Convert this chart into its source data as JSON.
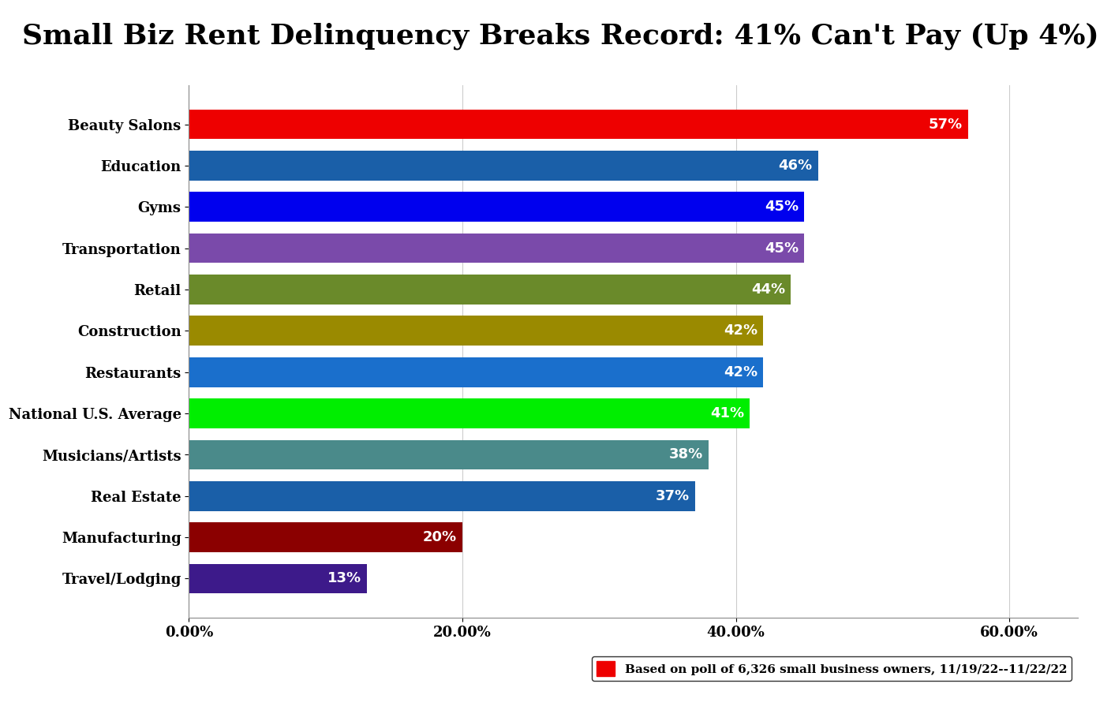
{
  "title": "Small Biz Rent Delinquency Breaks Record: 41% Can't Pay (Up 4%)",
  "categories": [
    "Travel/Lodging",
    "Manufacturing",
    "Real Estate",
    "Musicians/Artists",
    "National U.S. Average",
    "Restaurants",
    "Construction",
    "Retail",
    "Transportation",
    "Gyms",
    "Education",
    "Beauty Salons"
  ],
  "values": [
    13,
    20,
    37,
    38,
    41,
    42,
    42,
    44,
    45,
    45,
    46,
    57
  ],
  "bar_colors": [
    "#3d1a8a",
    "#8b0000",
    "#1a5fa8",
    "#4a8a8a",
    "#00ee00",
    "#1a6fcc",
    "#9a8a00",
    "#6a8a2a",
    "#7a4aaa",
    "#0000ee",
    "#1a5fa8",
    "#ee0000"
  ],
  "xlabel_ticks": [
    "0.00%",
    "20.00%",
    "40.00%",
    "60.00%"
  ],
  "xlabel_vals": [
    0,
    20,
    40,
    60
  ],
  "xlim": [
    0,
    65
  ],
  "legend_text": "Based on poll of 6,326 small business owners, 11/19/22--11/22/22",
  "legend_color": "#ee0000",
  "background_color": "#ffffff",
  "title_fontsize": 26,
  "label_fontsize": 13,
  "bar_label_fontsize": 13,
  "tick_fontsize": 13
}
